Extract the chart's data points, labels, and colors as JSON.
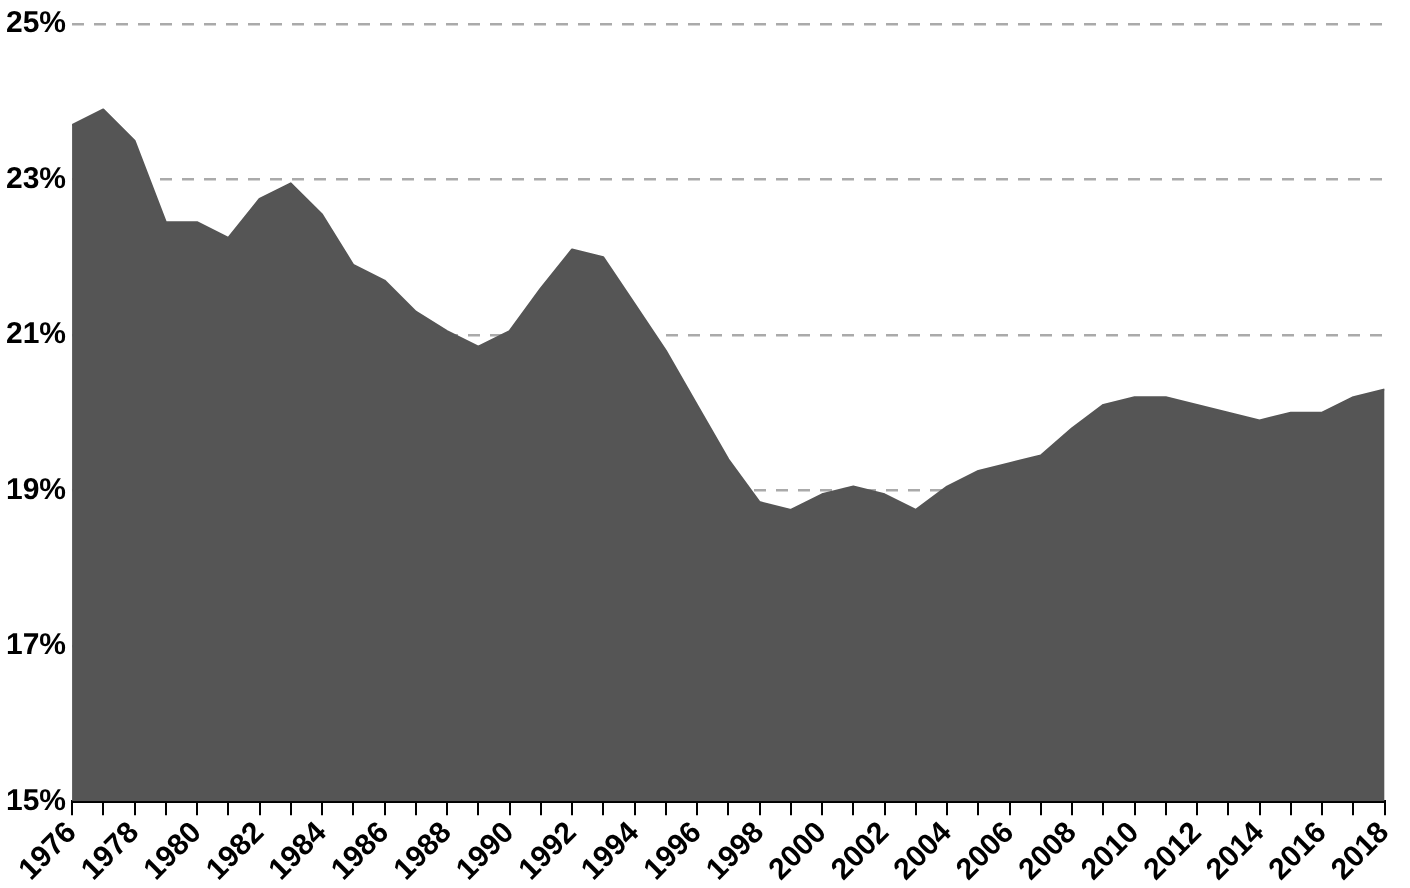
{
  "chart_data": {
    "type": "area",
    "x": [
      1976,
      1977,
      1978,
      1979,
      1980,
      1981,
      1982,
      1983,
      1984,
      1985,
      1986,
      1987,
      1988,
      1989,
      1990,
      1991,
      1992,
      1993,
      1994,
      1995,
      1996,
      1997,
      1998,
      1999,
      2000,
      2001,
      2002,
      2003,
      2004,
      2005,
      2006,
      2007,
      2008,
      2009,
      2010,
      2011,
      2012,
      2013,
      2014,
      2015,
      2016,
      2017,
      2018
    ],
    "values": [
      23.7,
      23.9,
      23.5,
      22.45,
      22.45,
      22.25,
      22.75,
      22.95,
      22.55,
      21.9,
      21.7,
      21.3,
      21.05,
      20.85,
      21.05,
      21.6,
      22.1,
      22.0,
      21.4,
      20.8,
      20.1,
      19.4,
      18.85,
      18.75,
      18.95,
      19.05,
      18.95,
      18.75,
      19.05,
      19.25,
      19.35,
      19.45,
      19.8,
      20.1,
      20.2,
      20.2,
      20.1,
      20.0,
      19.9,
      20.0,
      20.0,
      20.2,
      20.3
    ],
    "color": "#555555",
    "xlim": [
      1976,
      2018
    ],
    "xticks": [
      1976,
      {
        "value": 1977,
        "label": null
      },
      1978,
      {
        "value": 1979,
        "label": null
      },
      1980,
      {
        "value": 1981,
        "label": null
      },
      1982,
      {
        "value": 1983,
        "label": null
      },
      1984,
      {
        "value": 1985,
        "label": null
      },
      1986,
      {
        "value": 1987,
        "label": null
      },
      1988,
      {
        "value": 1989,
        "label": null
      },
      1990,
      {
        "value": 1991,
        "label": null
      },
      1992,
      {
        "value": 1993,
        "label": null
      },
      1994,
      {
        "value": 1995,
        "label": null
      },
      1996,
      {
        "value": 1997,
        "label": null
      },
      1998,
      {
        "value": 1999,
        "label": null
      },
      2000,
      {
        "value": 2001,
        "label": null
      },
      2002,
      {
        "value": 2003,
        "label": null
      },
      2004,
      {
        "value": 2005,
        "label": null
      },
      2006,
      {
        "value": 2007,
        "label": null
      },
      2008,
      {
        "value": 2009,
        "label": null
      },
      2010,
      {
        "value": 2011,
        "label": null
      },
      2012,
      {
        "value": 2013,
        "label": null
      },
      2014,
      {
        "value": 2015,
        "label": null
      },
      2016,
      {
        "value": 2017,
        "label": null
      },
      2018
    ],
    "ylim": [
      15,
      25
    ],
    "yticks": [
      {
        "value": 15,
        "label": "15%"
      },
      {
        "value": 17,
        "label": "17%"
      },
      {
        "value": 19,
        "label": "19%"
      },
      {
        "value": 21,
        "label": "21%"
      },
      {
        "value": 23,
        "label": "23%"
      },
      {
        "value": 25,
        "label": "25%"
      }
    ],
    "grid": "y",
    "legend": false
  }
}
